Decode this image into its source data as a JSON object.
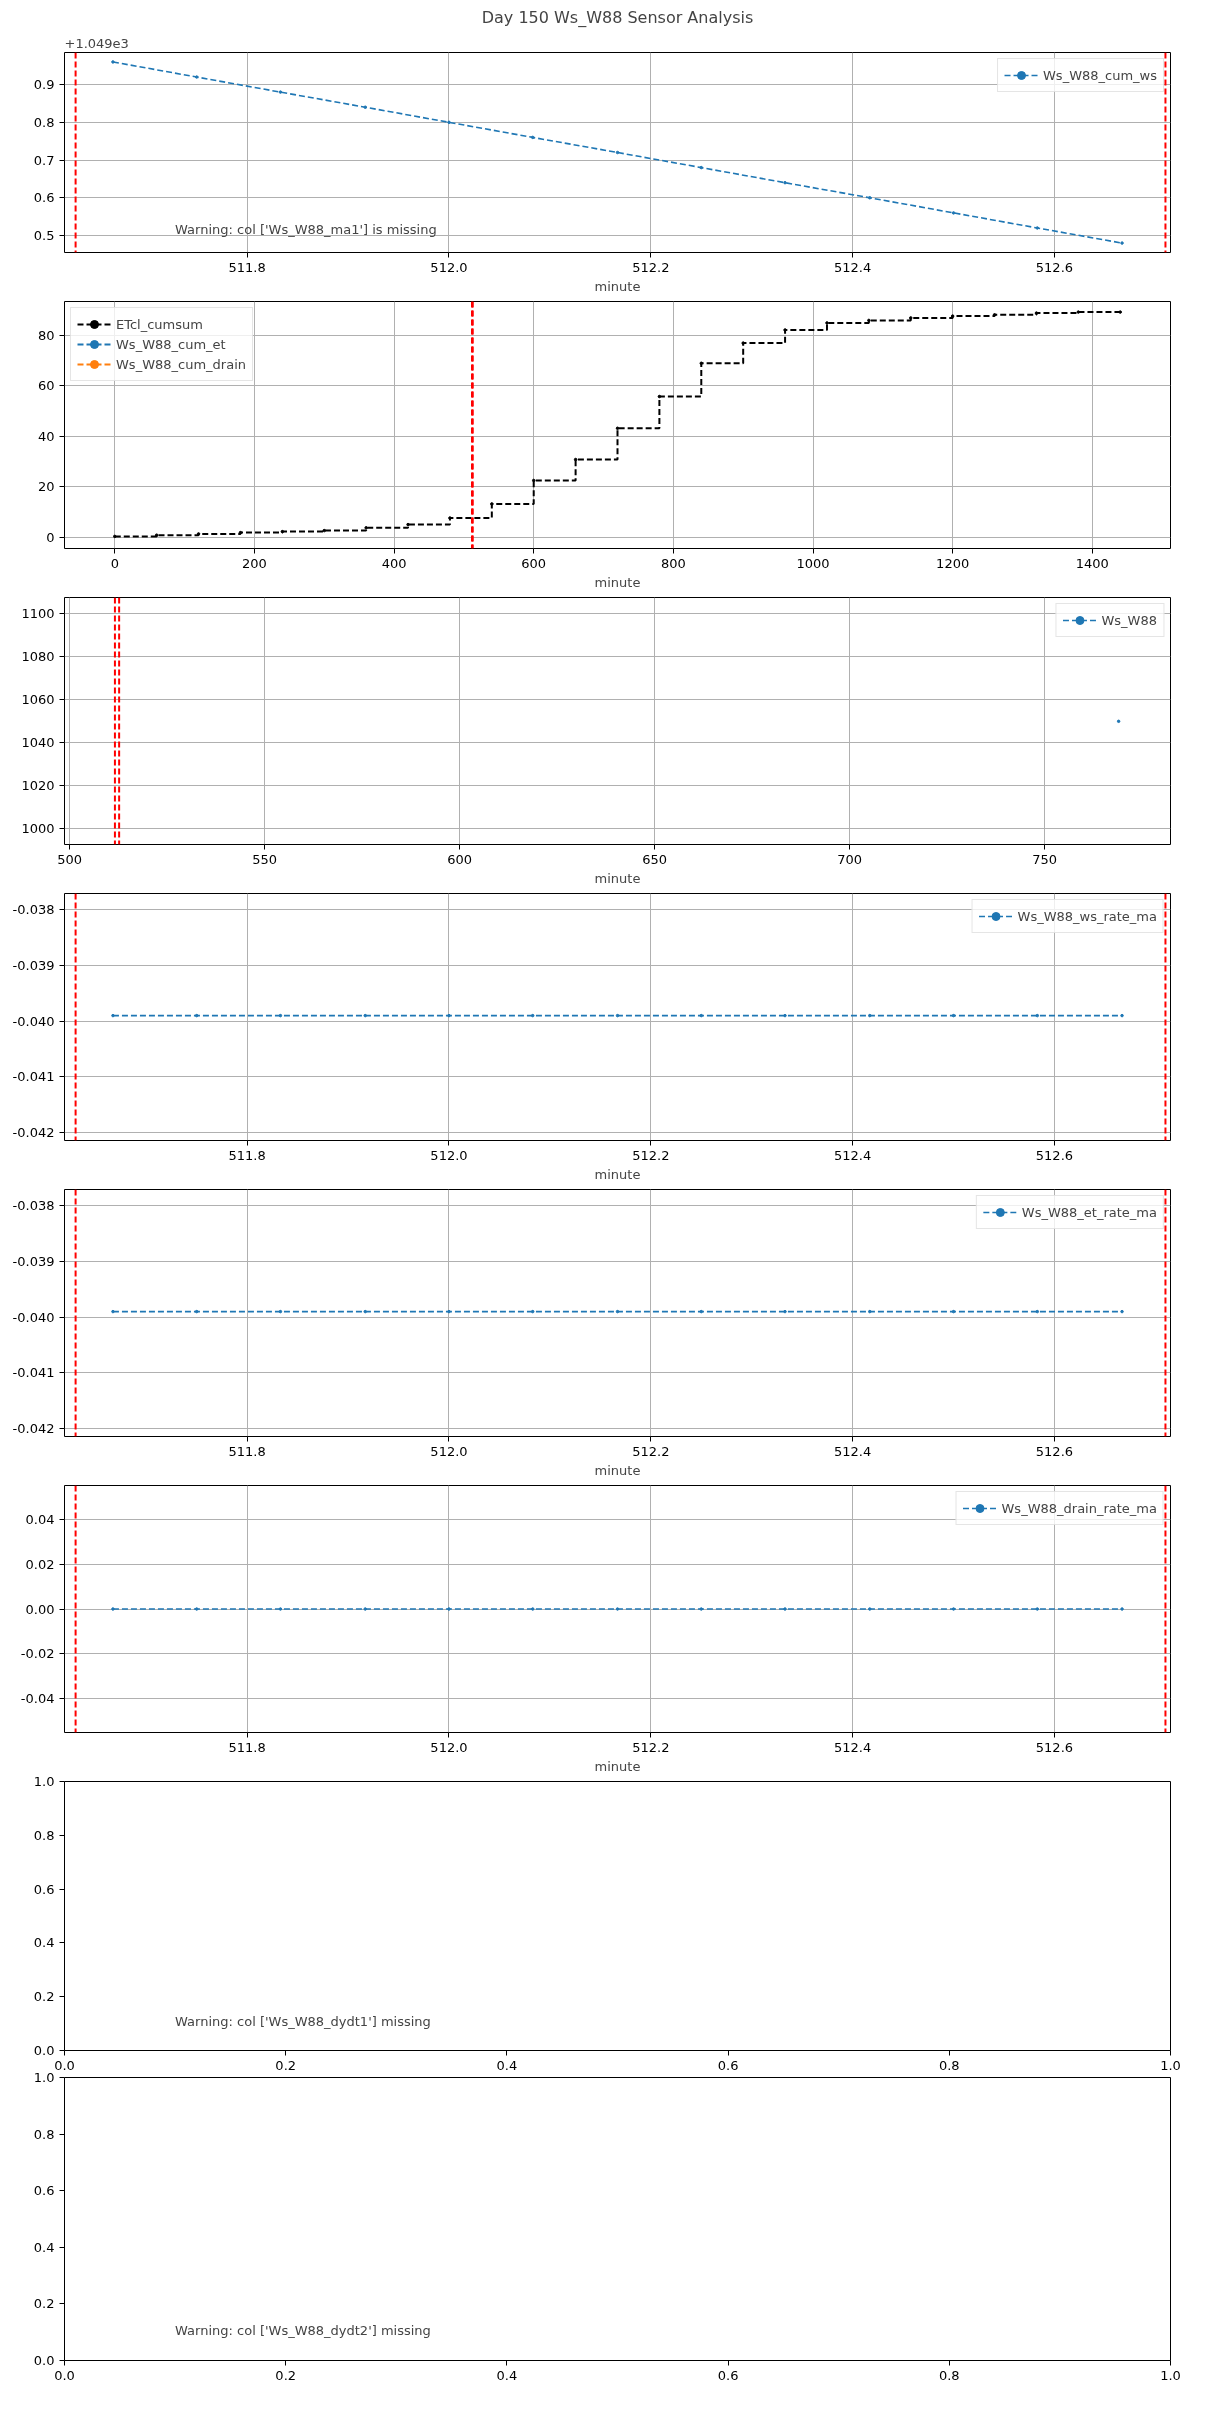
{
  "chart_data": [
    {
      "type": "line",
      "title": "Day 150 Ws_W88 Sensor Analysis",
      "ylabel": "+1.049e3",
      "xlabel": "minute",
      "xlim": [
        511.619,
        512.715
      ],
      "ylim": [
        0.455,
        0.985
      ],
      "xticks": [
        511.8,
        {
          "value": 512.0,
          "label": "512.0"
        },
        512.2,
        512.4,
        512.6
      ],
      "yticks": [
        0.5,
        0.6,
        0.7,
        0.8,
        0.9
      ],
      "grid": true,
      "legend": "top right",
      "marker": "circle",
      "line_style": "dashed",
      "series": [
        {
          "name": "Ws_W88_cum_ws",
          "color": "#1f77b4",
          "x": [
            511.667,
            511.75,
            511.833,
            511.917,
            512.0,
            512.083,
            512.167,
            512.25,
            512.333,
            512.417,
            512.5,
            512.583,
            512.667
          ],
          "values": [
            0.96,
            0.92,
            0.88,
            0.84,
            0.8,
            0.76,
            0.72,
            0.68,
            0.64,
            0.6,
            0.56,
            0.52,
            0.48
          ]
        }
      ],
      "ref_lines": [
        {
          "axis": "x",
          "value": 511.63,
          "color": "#ff0000",
          "line_style": "dashed"
        },
        {
          "axis": "x",
          "value": 512.71,
          "color": "#ff0000",
          "line_style": "dashed"
        }
      ],
      "annotations": [
        "Warning: col ['Ws_W88_ma1'] is missing"
      ]
    },
    {
      "type": "step",
      "xlabel": "minute",
      "xlim": [
        -72,
        1512
      ],
      "ylim": [
        -4.5,
        93.5
      ],
      "xticks": [
        0,
        200,
        400,
        600,
        800,
        1000,
        1200,
        1400
      ],
      "yticks": [
        0,
        20,
        40,
        60,
        80
      ],
      "grid": true,
      "legend": "top left",
      "marker": "circle",
      "line_style": "dashed",
      "series": [
        {
          "name": "ETcl_cumsum",
          "color": "#000000",
          "x": [
            0,
            60,
            120,
            180,
            240,
            300,
            360,
            420,
            480,
            540,
            600,
            660,
            720,
            780,
            840,
            900,
            960,
            1020,
            1080,
            1140,
            1200,
            1260,
            1320,
            1380,
            1440
          ],
          "values": [
            0.3,
            0.8,
            1.3,
            1.8,
            2.2,
            2.6,
            3.7,
            5.0,
            7.6,
            13.2,
            22.5,
            30.8,
            43.2,
            55.8,
            69.0,
            77.0,
            82.2,
            85.0,
            86.0,
            87.0,
            87.7,
            88.2,
            88.9,
            89.3,
            89.3
          ]
        },
        {
          "name": "Ws_W88_cum_et",
          "color": "#1f77b4"
        },
        {
          "name": "Ws_W88_cum_drain",
          "color": "#ff7f0e"
        }
      ],
      "ref_lines": [
        {
          "axis": "x",
          "value": 511.63,
          "color": "#ff0000",
          "line_style": "dashed"
        },
        {
          "axis": "x",
          "value": 512.71,
          "color": "#ff0000",
          "line_style": "dashed"
        }
      ]
    },
    {
      "type": "line",
      "xlabel": "minute",
      "xlim": [
        498.7,
        782.3
      ],
      "ylim": [
        992.8,
        1107.5
      ],
      "xticks": [
        500,
        550,
        600,
        650,
        700,
        750
      ],
      "yticks": [
        1000,
        1020,
        1040,
        1060,
        1080,
        1100
      ],
      "grid": true,
      "legend": "top right",
      "marker": "circle",
      "line_style": "dashed",
      "series": [
        {
          "name": "Ws_W88",
          "color": "#1f77b4",
          "x": [
            769
          ],
          "values": [
            1050
          ]
        }
      ],
      "ref_lines": [
        {
          "axis": "x",
          "value": 511.63,
          "color": "#ff0000",
          "line_style": "dashed"
        },
        {
          "axis": "x",
          "value": 512.71,
          "color": "#ff0000",
          "line_style": "dashed"
        }
      ]
    },
    {
      "type": "line",
      "xlabel": "minute",
      "xlim": [
        511.619,
        512.715
      ],
      "ylim": [
        -0.04214,
        -0.03771
      ],
      "xticks": [
        511.8,
        {
          "value": 512.0,
          "label": "512.0"
        },
        512.2,
        512.4,
        512.6
      ],
      "yticks": [
        -0.042,
        -0.041,
        {
          "value": -0.04,
          "label": "-0.040"
        },
        -0.039,
        -0.038
      ],
      "grid": true,
      "legend": "top right",
      "marker": "circle",
      "line_style": "dashed",
      "series": [
        {
          "name": "Ws_W88_ws_rate_ma",
          "color": "#1f77b4",
          "x": [
            511.667,
            511.75,
            511.833,
            511.917,
            512.0,
            512.083,
            512.167,
            512.25,
            512.333,
            512.417,
            512.5,
            512.583,
            512.667
          ],
          "values": [
            -0.0399,
            -0.0399,
            -0.0399,
            -0.0399,
            -0.0399,
            -0.0399,
            -0.0399,
            -0.0399,
            -0.0399,
            -0.0399,
            -0.0399,
            -0.0399,
            -0.0399
          ]
        }
      ],
      "ref_lines": [
        {
          "axis": "x",
          "value": 511.63,
          "color": "#ff0000",
          "line_style": "dashed"
        },
        {
          "axis": "x",
          "value": 512.71,
          "color": "#ff0000",
          "line_style": "dashed"
        }
      ]
    },
    {
      "type": "line",
      "xlabel": "minute",
      "xlim": [
        511.619,
        512.715
      ],
      "ylim": [
        -0.04214,
        -0.03771
      ],
      "xticks": [
        511.8,
        {
          "value": 512.0,
          "label": "512.0"
        },
        512.2,
        512.4,
        512.6
      ],
      "yticks": [
        -0.042,
        -0.041,
        {
          "value": -0.04,
          "label": "-0.040"
        },
        -0.039,
        -0.038
      ],
      "grid": true,
      "legend": "top right",
      "marker": "circle",
      "line_style": "dashed",
      "series": [
        {
          "name": "Ws_W88_et_rate_ma",
          "color": "#1f77b4",
          "x": [
            511.667,
            511.75,
            511.833,
            511.917,
            512.0,
            512.083,
            512.167,
            512.25,
            512.333,
            512.417,
            512.5,
            512.583,
            512.667
          ],
          "values": [
            -0.0399,
            -0.0399,
            -0.0399,
            -0.0399,
            -0.0399,
            -0.0399,
            -0.0399,
            -0.0399,
            -0.0399,
            -0.0399,
            -0.0399,
            -0.0399,
            -0.0399
          ]
        }
      ],
      "ref_lines": [
        {
          "axis": "x",
          "value": 511.63,
          "color": "#ff0000",
          "line_style": "dashed"
        },
        {
          "axis": "x",
          "value": 512.71,
          "color": "#ff0000",
          "line_style": "dashed"
        }
      ]
    },
    {
      "type": "line",
      "xlabel": "minute",
      "xlim": [
        511.619,
        512.715
      ],
      "ylim": [
        -0.055,
        0.055
      ],
      "xticks": [
        511.8,
        {
          "value": 512.0,
          "label": "512.0"
        },
        512.2,
        512.4,
        512.6
      ],
      "yticks": [
        -0.04,
        -0.02,
        {
          "value": 0,
          "label": "0.00"
        },
        0.02,
        0.04
      ],
      "grid": true,
      "legend": "top right",
      "marker": "circle",
      "line_style": "dashed",
      "series": [
        {
          "name": "Ws_W88_drain_rate_ma",
          "color": "#1f77b4",
          "x": [
            511.667,
            511.75,
            511.833,
            511.917,
            512.0,
            512.083,
            512.167,
            512.25,
            512.333,
            512.417,
            512.5,
            512.583,
            512.667
          ],
          "values": [
            0,
            0,
            0,
            0,
            0,
            0,
            0,
            0,
            0,
            0,
            0,
            0,
            0
          ]
        }
      ],
      "ref_lines": [
        {
          "axis": "x",
          "value": 511.63,
          "color": "#ff0000",
          "line_style": "dashed"
        },
        {
          "axis": "x",
          "value": 512.71,
          "color": "#ff0000",
          "line_style": "dashed"
        }
      ]
    },
    {
      "type": "line",
      "xlim": [
        0,
        1
      ],
      "ylim": [
        0,
        1
      ],
      "xticks": [
        {
          "value": 0,
          "label": "0.0"
        },
        0.2,
        0.4,
        0.6,
        0.8,
        {
          "value": 1,
          "label": "1.0"
        }
      ],
      "yticks": [
        {
          "value": 0,
          "label": "0.0"
        },
        0.2,
        0.4,
        0.6,
        0.8,
        {
          "value": 1,
          "label": "1.0"
        }
      ],
      "annotations": [
        "Warning: col ['Ws_W88_dydt1'] missing"
      ]
    },
    {
      "type": "line",
      "xlim": [
        0,
        1
      ],
      "ylim": [
        0,
        1
      ],
      "xticks": [
        {
          "value": 0,
          "label": "0.0"
        },
        0.2,
        0.4,
        0.6,
        0.8,
        {
          "value": 1,
          "label": "1.0"
        }
      ],
      "yticks": [
        {
          "value": 0,
          "label": "0.0"
        },
        0.2,
        0.4,
        0.6,
        0.8,
        {
          "value": 1,
          "label": "1.0"
        }
      ],
      "annotations": [
        "Warning: col ['Ws_W88_dydt2'] missing"
      ]
    }
  ]
}
